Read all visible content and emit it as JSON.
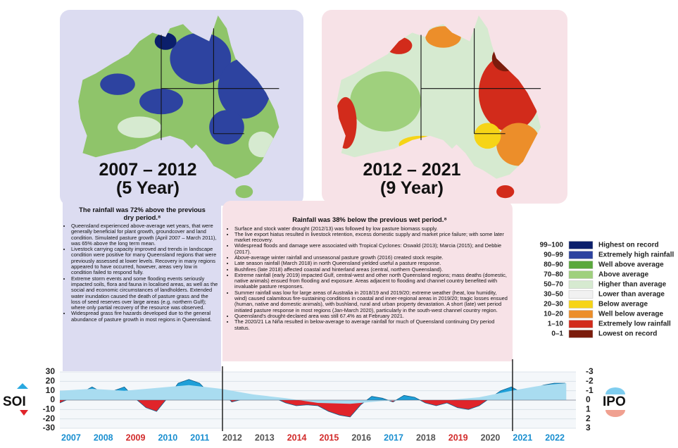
{
  "left_panel": {
    "title": "2007 – 2012",
    "subtitle": "(5 Year)",
    "heading": "The rainfall was 72% above the previous dry period.⁸",
    "bullets": [
      "Queensland experienced above-average wet years, that were generally beneficial for plant growth, groundcover and land condition. Simulated pasture growth (April 2007 – March 2011), was 65% above the long term mean.",
      "Livestock carrying capacity improved and trends in landscape condition were positive for many Queensland regions that were previously assessed at lower levels. Recovery in many regions appeared to have occurred, however, areas very low in condition failed to respond fully.",
      "Extreme storm events and some flooding events seriously impacted soils, flora and fauna in localised areas, as well as the social and economic circumstances of landholders. Extended water inundation caused the death of pasture grass and the loss of seed reserves over large areas (e.g. northern Gulf); where only partial recovery of the resource was observed.",
      "Widespread grass fire hazards developed due to the general abundance of pasture growth in most regions in Queensland."
    ]
  },
  "right_panel": {
    "title": "2012 – 2021",
    "subtitle": "(9 Year)",
    "heading": "Rainfall was 38% below the previous wet period.⁸",
    "bullets": [
      "Surface and stock water drought (2012/13) was followed by low pasture biomass supply.",
      "The live export hiatus resulted in livestock retention, excess domestic supply and market price failure; with some later market recovery.",
      "Widespread floods and damage were associated with Tropical Cyclones: Oswald (2013); Marcia (2015); and Debbie (2017).",
      "Above-average winter rainfall and unseasonal pasture growth (2016) created stock respite.",
      "Late season rainfall (March 2018) in north Queensland yielded useful a pasture response.",
      "Bushfires (late 2018) affected coastal and hinterland areas (central, northern Queensland).",
      "Extreme rainfall (early 2019) impacted Gulf, central-west and other north Queensland regions; mass deaths (domestic, native animals) ensued from flooding and exposure. Areas adjacent to flooding and channel country benefited with invaluable pasture responses.",
      "Summer rainfall was low for large areas of Australia in 2018/19 and 2019/20; extreme weather (heat, low humidity, wind) caused calamitous fire-sustaining conditions in coastal and inner-regional areas in 2019/20; tragic losses ensued (human, native and domestic animals), with bushland, rural and urban property devastation. A short (late) wet period initiated pasture response in most regions (Jan-March 2020), particularly in the south-west channel country region.",
      "Queensland's drought-declared area was still 67.4% as at February 2021.",
      "The 2020/21 La Niña resulted in below-average to average rainfall for much of Queensland continuing Dry period status."
    ]
  },
  "legend": {
    "items": [
      {
        "range": "99–100",
        "label": "Highest on record",
        "color": "#0b1f6b"
      },
      {
        "range": "90–99",
        "label": "Extremely high rainfall",
        "color": "#2d43a0"
      },
      {
        "range": "80–90",
        "label": "Well above average",
        "color": "#5aa83c"
      },
      {
        "range": "70–80",
        "label": "Above average",
        "color": "#9fd07d"
      },
      {
        "range": "50–70",
        "label": "Higher than average",
        "color": "#d6ead0"
      },
      {
        "range": "30–50",
        "label": "Lower than average",
        "color": "#f1f1f1"
      },
      {
        "range": "20–30",
        "label": "Below average",
        "color": "#f6d417"
      },
      {
        "range": "10–20",
        "label": "Well below average",
        "color": "#ec8e2a"
      },
      {
        "range": "1–10",
        "label": "Extremely low rainfall",
        "color": "#d22b1b"
      },
      {
        "range": "0–1",
        "label": "Lowest on record",
        "color": "#7b1c0c"
      }
    ]
  },
  "chart_data": {
    "type": "area",
    "xlim": [
      2007,
      2023
    ],
    "xticks": [
      2007,
      2008,
      2009,
      2010,
      2011,
      2012,
      2013,
      2014,
      2015,
      2016,
      2017,
      2018,
      2019,
      2020,
      2021,
      2022
    ],
    "xtick_colors": [
      "#1a8fd0",
      "#1a8fd0",
      "#d22b2b",
      "#1a8fd0",
      "#1a8fd0",
      "#555555",
      "#555555",
      "#d22b2b",
      "#d22b2b",
      "#555555",
      "#1a8fd0",
      "#555555",
      "#d22b2b",
      "#555555",
      "#1a8fd0",
      "#1a8fd0"
    ],
    "ylim": [
      -30,
      30
    ],
    "yticks": [
      30,
      20,
      10,
      0,
      -10,
      -20,
      -30
    ],
    "y2lim": [
      3,
      -3
    ],
    "y2ticks": [
      -3,
      -2,
      -1,
      0,
      1,
      2,
      3
    ],
    "grid": true,
    "series": [
      {
        "name": "SOI",
        "color": "#1e9fd8",
        "negative_color": "#e0242a",
        "x": [
          2007.0,
          2007.33,
          2007.67,
          2008.0,
          2008.33,
          2008.67,
          2009.0,
          2009.33,
          2009.67,
          2010.0,
          2010.33,
          2010.67,
          2011.0,
          2011.33,
          2011.67,
          2012.0,
          2012.33,
          2012.67,
          2013.0,
          2013.33,
          2013.67,
          2014.0,
          2014.33,
          2014.67,
          2015.0,
          2015.33,
          2015.67,
          2016.0,
          2016.33,
          2016.67,
          2017.0,
          2017.33,
          2017.67,
          2018.0,
          2018.33,
          2018.67,
          2019.0,
          2019.33,
          2019.67,
          2020.0,
          2020.33,
          2020.67,
          2021.0,
          2021.33,
          2021.67,
          2022.0,
          2022.33,
          2022.67
        ],
        "values": [
          -3,
          2,
          8,
          14,
          8,
          10,
          14,
          2,
          -8,
          -12,
          2,
          18,
          22,
          18,
          6,
          10,
          -2,
          1,
          2,
          3,
          2,
          -3,
          -6,
          -5,
          -6,
          -12,
          -16,
          -18,
          -5,
          4,
          2,
          -2,
          5,
          3,
          -3,
          -6,
          -3,
          -8,
          -10,
          -6,
          2,
          10,
          14,
          8,
          12,
          16,
          18,
          18
        ]
      },
      {
        "name": "IPO",
        "color": "#a9dcf0",
        "axis": "y2",
        "x": [
          2007,
          2008,
          2009,
          2010,
          2011,
          2012,
          2013,
          2014,
          2015,
          2016,
          2017,
          2018,
          2019,
          2020,
          2021,
          2022,
          2022.7
        ],
        "values": [
          -1.0,
          -1.2,
          -1.0,
          -1.3,
          -1.6,
          -1.2,
          -0.6,
          -0.2,
          0.3,
          0.4,
          0.1,
          0,
          0,
          -0.3,
          -1.0,
          -1.6,
          -1.8
        ]
      }
    ]
  }
}
